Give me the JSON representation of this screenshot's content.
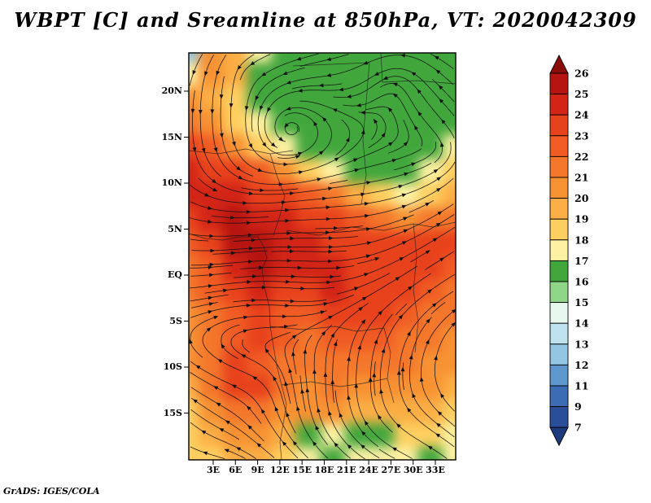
{
  "title": "WBPT [C] and Sreamline at 850hPa, VT: 2020042309",
  "credit": "GrADS: IGES/COLA",
  "chart_data": {
    "type": "heatmap",
    "variable": "WBPT [C]",
    "overlay": "streamlines",
    "level": "850hPa",
    "valid_time": "2020042309",
    "x_tick_labels": [
      "3E",
      "6E",
      "9E",
      "12E",
      "15E",
      "18E",
      "21E",
      "24E",
      "27E",
      "30E",
      "33E"
    ],
    "y_tick_labels": [
      "20N",
      "15N",
      "10N",
      "5N",
      "EQ",
      "5S",
      "10S",
      "15S"
    ],
    "colorbar_labels": [
      "26",
      "25",
      "24",
      "23",
      "22",
      "21",
      "20",
      "19",
      "18",
      "17",
      "16",
      "15",
      "14",
      "13",
      "12",
      "11",
      "9",
      "7"
    ],
    "colorbar_colors": [
      "#8a0d09",
      "#b51410",
      "#d22417",
      "#e8421c",
      "#f05c24",
      "#f4772b",
      "#f79233",
      "#fbae45",
      "#fecf60",
      "#fdf1a3",
      "#41a73d",
      "#90d689",
      "#e9f8ef",
      "#bfe2ef",
      "#92c6e2",
      "#5e97cc",
      "#3b6cb4",
      "#2a4f98",
      "#1d3a7d"
    ],
    "grid": {
      "lon_range_deg_east": [
        0,
        35
      ],
      "lat_range_deg": [
        24,
        -20
      ],
      "values": [
        [
          12.5,
          20.5,
          19.5,
          17.5,
          16.5,
          16.5,
          16.5,
          16.5,
          16.5,
          16.5,
          16.5,
          16.5
        ],
        [
          17.5,
          20.5,
          19.5,
          16.5,
          16.5,
          16.5,
          16.5,
          16.5,
          16.5,
          16.5,
          16.5,
          16.5
        ],
        [
          20.5,
          19.5,
          18.5,
          16.5,
          16.5,
          16.5,
          16.5,
          16.5,
          16.5,
          16.5,
          16.5,
          16.5
        ],
        [
          21.5,
          20.5,
          18.5,
          17.5,
          16.5,
          16.5,
          16.5,
          16.5,
          16.5,
          16.5,
          16.5,
          16.5
        ],
        [
          23.5,
          22.5,
          20.5,
          18.5,
          17.5,
          16.5,
          16.5,
          16.5,
          16.5,
          16.5,
          16.5,
          17.5
        ],
        [
          24.5,
          23.5,
          23.5,
          22.5,
          20.5,
          18.5,
          17.5,
          16.5,
          16.5,
          16.5,
          17.5,
          18.5
        ],
        [
          24.5,
          24.5,
          24.5,
          23.5,
          23.5,
          22.5,
          21.5,
          19.5,
          18.5,
          17.5,
          18.5,
          19.5
        ],
        [
          23.5,
          24.5,
          25.5,
          24.5,
          24.5,
          23.5,
          23.5,
          22.5,
          21.5,
          20.5,
          21.5,
          21.5
        ],
        [
          22.5,
          23.5,
          25.5,
          25.5,
          24.5,
          24.5,
          23.5,
          23.5,
          23.5,
          23.5,
          23.5,
          23.5
        ],
        [
          21.5,
          22.5,
          24.5,
          25.5,
          24.5,
          24.5,
          24.5,
          23.5,
          23.5,
          23.5,
          23.5,
          22.5
        ],
        [
          21.5,
          22.5,
          23.5,
          24.5,
          23.5,
          23.5,
          24.5,
          23.5,
          23.5,
          23.5,
          22.5,
          21.5
        ],
        [
          20.5,
          21.5,
          22.5,
          23.5,
          22.5,
          22.5,
          23.5,
          23.5,
          23.5,
          22.5,
          21.5,
          21.5
        ],
        [
          20.5,
          21.5,
          22.5,
          23.5,
          22.5,
          21.5,
          22.5,
          22.5,
          22.5,
          21.5,
          21.5,
          20.5
        ],
        [
          20.5,
          21.5,
          23.5,
          22.5,
          21.5,
          21.5,
          21.5,
          21.5,
          21.5,
          21.5,
          20.5,
          20.5
        ],
        [
          19.5,
          21.5,
          23.5,
          23.5,
          21.5,
          20.5,
          21.5,
          20.5,
          20.5,
          20.5,
          20.5,
          19.5
        ],
        [
          18.5,
          20.5,
          21.5,
          21.5,
          20.5,
          20.5,
          20.5,
          19.5,
          19.5,
          19.5,
          19.5,
          18.5
        ],
        [
          18.5,
          19.5,
          20.5,
          20.5,
          19.5,
          16.5,
          17.5,
          16.5,
          16.5,
          18.5,
          18.5,
          17.5
        ],
        [
          18.5,
          18.5,
          19.5,
          19.5,
          18.5,
          17.5,
          16.5,
          17.5,
          17.5,
          17.5,
          16.5,
          17.5
        ]
      ]
    }
  }
}
